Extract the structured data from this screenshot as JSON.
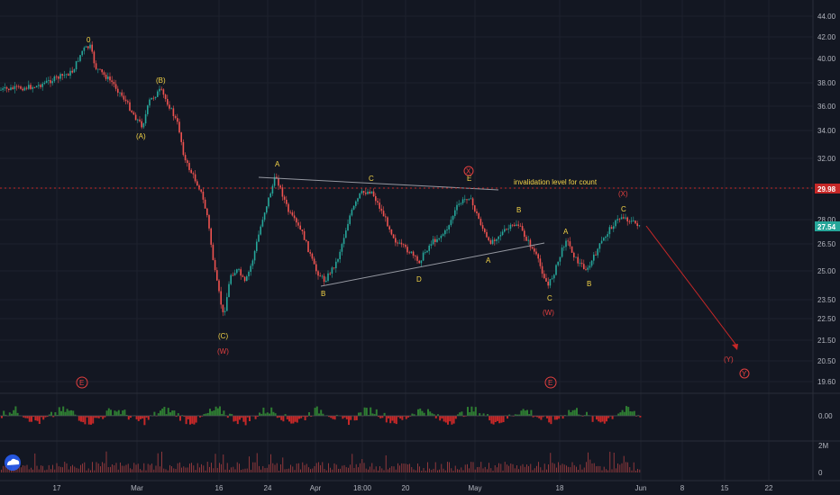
{
  "colors": {
    "background": "#131722",
    "grid": "#1e222d",
    "text": "#b2b5be",
    "up": "#26a69a",
    "down": "#ef5350",
    "wave_yellow": "#f5d547",
    "wave_red": "#e33f3f",
    "level_badge": "#c62828",
    "price_badge": "#26a69a",
    "macd_up": "#2e7d32",
    "macd_down": "#c62828",
    "volume": "#ef5350"
  },
  "price_axis": {
    "ticks": [
      "44.00",
      "42.00",
      "40.00",
      "38.00",
      "36.00",
      "34.00",
      "32.00",
      "30.00",
      "28.00",
      "26.50",
      "25.00",
      "23.50",
      "22.50",
      "21.50",
      "20.50",
      "19.60"
    ],
    "level_badge": "29.98",
    "last_price_badge": "27.54"
  },
  "macd_axis": {
    "ticks": [
      "0.00"
    ]
  },
  "volume_axis": {
    "ticks": [
      "2M",
      "0"
    ]
  },
  "time_axis": {
    "labels": [
      "17",
      "Mar",
      "16",
      "24",
      "Apr",
      "18:00",
      "20",
      "May",
      "18",
      "Jun",
      "8",
      "15",
      "22"
    ]
  },
  "annotations": {
    "invalidation_note": "invalidation level for count",
    "wave_labels_yellow": [
      "0",
      "(B)",
      "(A)",
      "(C)",
      "A",
      "C",
      "E",
      "B",
      "D",
      "A",
      "C",
      "B",
      "A",
      "B",
      "C"
    ],
    "wave_labels_red": [
      "(W)",
      "(W)",
      "(X)",
      "(Y)"
    ],
    "circled_labels": [
      "X",
      "E",
      "E",
      "Y"
    ]
  },
  "toolbar": {
    "logo_icon": "tradingview-cloud-icon"
  }
}
